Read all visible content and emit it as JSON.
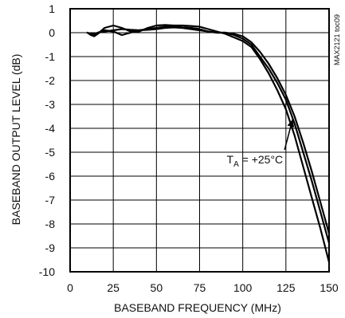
{
  "chart_data": {
    "type": "line",
    "title": "",
    "xlabel": "BASEBAND FREQUENCY (MHz)",
    "ylabel": "BASEBAND OUTPUT LEVEL (dB)",
    "xlim": [
      0,
      150
    ],
    "ylim": [
      -10,
      1
    ],
    "x_ticks": [
      0,
      25,
      50,
      75,
      100,
      125,
      150
    ],
    "y_ticks": [
      1,
      0,
      -1,
      -2,
      -3,
      -4,
      -5,
      -6,
      -7,
      -8,
      -9,
      -10
    ],
    "grid": true,
    "figure_tag": "MAX2121 toc09",
    "annotation": {
      "text_main": "T",
      "text_sub": "A",
      "text_rest": " = +25°C",
      "x": 127,
      "y": -5.1,
      "arrow_to_x": 127,
      "arrow_to_y": -3.5
    },
    "series": [
      {
        "x": [
          10,
          12,
          14,
          16,
          20,
          25,
          30,
          35,
          40,
          45,
          50,
          55,
          60,
          65,
          70,
          75,
          80,
          85,
          90,
          95,
          100,
          105,
          110,
          115,
          120,
          125,
          130,
          135,
          140,
          145,
          150
        ],
        "y": [
          0.0,
          -0.1,
          -0.15,
          -0.05,
          0.2,
          0.3,
          0.2,
          0.05,
          0.05,
          0.2,
          0.3,
          0.32,
          0.3,
          0.3,
          0.28,
          0.25,
          0.15,
          0.05,
          -0.05,
          -0.2,
          -0.35,
          -0.6,
          -1.1,
          -1.7,
          -2.4,
          -3.2,
          -4.3,
          -5.6,
          -6.9,
          -8.2,
          -9.6
        ]
      },
      {
        "x": [
          10,
          12,
          14,
          16,
          20,
          25,
          30,
          35,
          40,
          45,
          50,
          55,
          60,
          65,
          70,
          75,
          80,
          85,
          90,
          95,
          100,
          105,
          110,
          115,
          120,
          125,
          130,
          135,
          140,
          145,
          150
        ],
        "y": [
          0.0,
          -0.05,
          -0.1,
          0.0,
          0.1,
          0.05,
          -0.1,
          0.0,
          0.1,
          0.15,
          0.2,
          0.25,
          0.25,
          0.22,
          0.2,
          0.15,
          0.05,
          0.0,
          0.0,
          -0.1,
          -0.25,
          -0.5,
          -1.0,
          -1.5,
          -2.1,
          -2.8,
          -3.8,
          -5.0,
          -6.2,
          -7.5,
          -8.8
        ]
      },
      {
        "x": [
          10,
          12,
          14,
          16,
          20,
          25,
          30,
          35,
          40,
          45,
          50,
          55,
          60,
          65,
          70,
          75,
          80,
          85,
          90,
          95,
          100,
          105,
          110,
          115,
          120,
          125,
          130,
          135,
          140,
          145,
          150
        ],
        "y": [
          0.0,
          -0.05,
          -0.05,
          0.0,
          0.05,
          0.1,
          0.15,
          0.12,
          0.1,
          0.12,
          0.15,
          0.2,
          0.22,
          0.2,
          0.15,
          0.1,
          0.05,
          0.0,
          0.0,
          -0.05,
          -0.15,
          -0.4,
          -0.8,
          -1.3,
          -1.9,
          -2.6,
          -3.5,
          -4.6,
          -5.8,
          -7.1,
          -8.4
        ]
      }
    ]
  }
}
